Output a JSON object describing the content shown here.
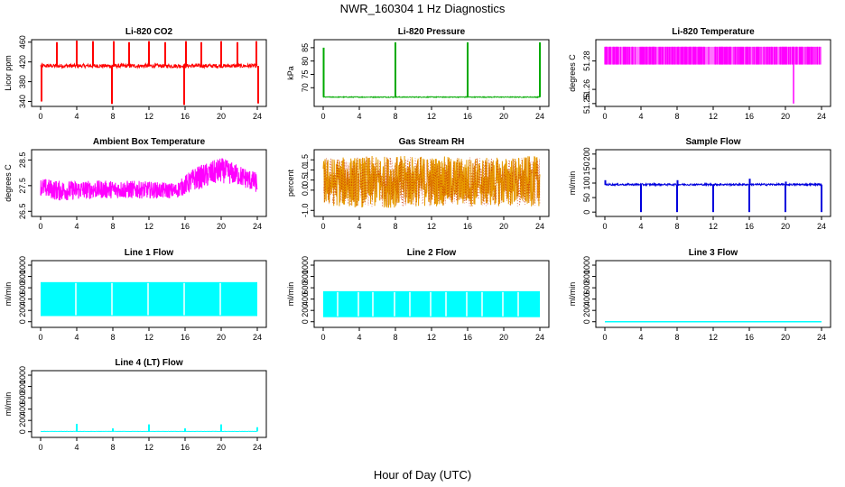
{
  "figure": {
    "title": "NWR_160304  1 Hz Diagnostics",
    "xlabel": "Hour of Day (UTC)"
  },
  "chart_data": [
    {
      "type": "line",
      "title": "Li-820 CO2",
      "ylabel": "Licor ppm",
      "color": "#ff0000",
      "xlim": [
        -1,
        25
      ],
      "ylim": [
        330,
        465
      ],
      "xticks": [
        "0",
        "4",
        "8",
        "12",
        "16",
        "20",
        "24"
      ],
      "yticks": [
        "340",
        "380",
        "420",
        "460"
      ],
      "style": "baseline_spikes",
      "baseline": 412,
      "noise": 4,
      "spikes": [
        {
          "x": 0.1,
          "y": 340
        },
        {
          "x": 1.8,
          "y": 460
        },
        {
          "x": 4.0,
          "y": 463
        },
        {
          "x": 5.8,
          "y": 462
        },
        {
          "x": 7.9,
          "y": 335
        },
        {
          "x": 8.1,
          "y": 462
        },
        {
          "x": 9.8,
          "y": 460
        },
        {
          "x": 12.0,
          "y": 462
        },
        {
          "x": 13.8,
          "y": 460
        },
        {
          "x": 15.9,
          "y": 333
        },
        {
          "x": 16.1,
          "y": 462
        },
        {
          "x": 17.8,
          "y": 460
        },
        {
          "x": 20.0,
          "y": 462
        },
        {
          "x": 21.8,
          "y": 460
        },
        {
          "x": 23.9,
          "y": 462
        },
        {
          "x": 24.1,
          "y": 336
        }
      ]
    },
    {
      "type": "line",
      "title": "Li-820 Pressure",
      "ylabel": "kPa",
      "color": "#00aa00",
      "xlim": [
        -1,
        25
      ],
      "ylim": [
        63,
        88
      ],
      "xticks": [
        "0",
        "4",
        "8",
        "12",
        "16",
        "20",
        "24"
      ],
      "yticks": [
        "70",
        "75",
        "80",
        "85"
      ],
      "style": "baseline_spikes",
      "baseline": 66.5,
      "noise": 0.15,
      "spikes": [
        {
          "x": 0.05,
          "y": 85
        },
        {
          "x": 8.0,
          "y": 87
        },
        {
          "x": 16.0,
          "y": 87
        },
        {
          "x": 24.0,
          "y": 87
        }
      ]
    },
    {
      "type": "line",
      "title": "Li-820 Temperature",
      "ylabel": "degrees C",
      "color": "#ff00ff",
      "xlim": [
        -1,
        25
      ],
      "ylim": [
        51.248,
        51.295
      ],
      "xticks": [
        "0",
        "4",
        "8",
        "12",
        "16",
        "20",
        "24"
      ],
      "yticks": [
        "51.25",
        "51.26",
        "51.28"
      ],
      "style": "band",
      "low": 51.2775,
      "high": 51.29,
      "dip": {
        "x": 20.9,
        "y": 51.25
      }
    },
    {
      "type": "line",
      "title": "Ambient Box Temperature",
      "ylabel": "degrees C",
      "color": "#ff00ff",
      "xlim": [
        -1,
        25
      ],
      "ylim": [
        26.3,
        28.9
      ],
      "xticks": [
        "0",
        "4",
        "8",
        "12",
        "16",
        "20",
        "24"
      ],
      "yticks": [
        "26.5",
        "27.5",
        "28.5"
      ],
      "style": "noise_profile",
      "profile": [
        {
          "x": 0,
          "lo": 27.1,
          "hi": 27.8
        },
        {
          "x": 2,
          "lo": 26.9,
          "hi": 27.7
        },
        {
          "x": 6,
          "lo": 27.0,
          "hi": 27.7
        },
        {
          "x": 10,
          "lo": 27.0,
          "hi": 27.7
        },
        {
          "x": 15,
          "lo": 27.0,
          "hi": 27.6
        },
        {
          "x": 17,
          "lo": 27.3,
          "hi": 28.2
        },
        {
          "x": 20,
          "lo": 27.6,
          "hi": 28.6
        },
        {
          "x": 22,
          "lo": 27.5,
          "hi": 28.3
        },
        {
          "x": 24,
          "lo": 27.2,
          "hi": 28.0
        }
      ]
    },
    {
      "type": "line",
      "title": "Gas Stream RH",
      "ylabel": "percent",
      "color": "#e69900",
      "color2": "#cc3300",
      "xlim": [
        -1,
        25
      ],
      "ylim": [
        -1.3,
        2.0
      ],
      "xticks": [
        "0",
        "4",
        "8",
        "12",
        "16",
        "20",
        "24"
      ],
      "yticks": [
        "-1.0",
        "0.0",
        "0.5",
        "1.0",
        "1.5"
      ],
      "style": "noise_profile",
      "profile": [
        {
          "x": 0,
          "lo": -0.8,
          "hi": 1.6
        },
        {
          "x": 6,
          "lo": -0.9,
          "hi": 1.7
        },
        {
          "x": 12,
          "lo": -0.8,
          "hi": 1.7
        },
        {
          "x": 18,
          "lo": -0.8,
          "hi": 1.6
        },
        {
          "x": 24,
          "lo": -0.8,
          "hi": 1.7
        }
      ]
    },
    {
      "type": "line",
      "title": "Sample Flow",
      "ylabel": "ml/min",
      "color": "#0000dd",
      "xlim": [
        -1,
        25
      ],
      "ylim": [
        -15,
        215
      ],
      "xticks": [
        "0",
        "4",
        "8",
        "12",
        "16",
        "20",
        "24"
      ],
      "yticks": [
        "0",
        "50",
        "100",
        "150",
        "200"
      ],
      "style": "baseline_spikes",
      "baseline": 95,
      "noise": 3,
      "spikes": [
        {
          "x": 0.05,
          "y": 110
        },
        {
          "x": 4.0,
          "y": 0
        },
        {
          "x": 8.0,
          "y": 0
        },
        {
          "x": 8.05,
          "y": 110
        },
        {
          "x": 12.0,
          "y": 0
        },
        {
          "x": 16.0,
          "y": 0
        },
        {
          "x": 16.05,
          "y": 115
        },
        {
          "x": 20.0,
          "y": 0
        },
        {
          "x": 20.05,
          "y": 105
        },
        {
          "x": 24.0,
          "y": 0
        }
      ]
    },
    {
      "type": "line",
      "title": "Line 1 Flow",
      "ylabel": "ml/min",
      "color": "#00ffff",
      "xlim": [
        -1,
        25
      ],
      "ylim": [
        -100,
        1080
      ],
      "xticks": [
        "0",
        "4",
        "8",
        "12",
        "16",
        "20",
        "24"
      ],
      "yticks": [
        "0",
        "200",
        "400",
        "600",
        "800",
        "1000"
      ],
      "style": "block",
      "low": 100,
      "high": 700,
      "span": [
        0,
        24
      ],
      "gaps": [
        3.9,
        7.9,
        11.9,
        15.9,
        19.9
      ]
    },
    {
      "type": "line",
      "title": "Line 2 Flow",
      "ylabel": "ml/min",
      "color": "#00ffff",
      "xlim": [
        -1,
        25
      ],
      "ylim": [
        -100,
        1080
      ],
      "xticks": [
        "0",
        "4",
        "8",
        "12",
        "16",
        "20",
        "24"
      ],
      "yticks": [
        "0",
        "200",
        "400",
        "600",
        "800",
        "1000"
      ],
      "style": "block",
      "low": 80,
      "high": 540,
      "span": [
        0,
        24
      ],
      "gaps": [
        1.6,
        3.9,
        5.5,
        7.9,
        9.6,
        11.9,
        13.6,
        15.9,
        17.6,
        19.9,
        21.6
      ]
    },
    {
      "type": "line",
      "title": "Line 3 Flow",
      "ylabel": "ml/min",
      "color": "#00ffff",
      "xlim": [
        -1,
        25
      ],
      "ylim": [
        -100,
        1080
      ],
      "xticks": [
        "0",
        "4",
        "8",
        "12",
        "16",
        "20",
        "24"
      ],
      "yticks": [
        "0",
        "200",
        "400",
        "600",
        "800",
        "1000"
      ],
      "style": "flat",
      "baseline": 0,
      "span": [
        0,
        24
      ]
    },
    {
      "type": "line",
      "title": "Line 4 (LT) Flow",
      "ylabel": "ml/min",
      "color": "#00ffff",
      "xlim": [
        -1,
        25
      ],
      "ylim": [
        -100,
        1080
      ],
      "xticks": [
        "0",
        "4",
        "8",
        "12",
        "16",
        "20",
        "24"
      ],
      "yticks": [
        "0",
        "200",
        "400",
        "600",
        "800",
        "1000"
      ],
      "style": "baseline_spikes",
      "baseline": 5,
      "noise": 2,
      "spikes": [
        {
          "x": 4.0,
          "y": 140
        },
        {
          "x": 8.0,
          "y": 60
        },
        {
          "x": 12.0,
          "y": 130
        },
        {
          "x": 16.0,
          "y": 60
        },
        {
          "x": 20.0,
          "y": 130
        },
        {
          "x": 24.0,
          "y": 80
        }
      ]
    }
  ]
}
